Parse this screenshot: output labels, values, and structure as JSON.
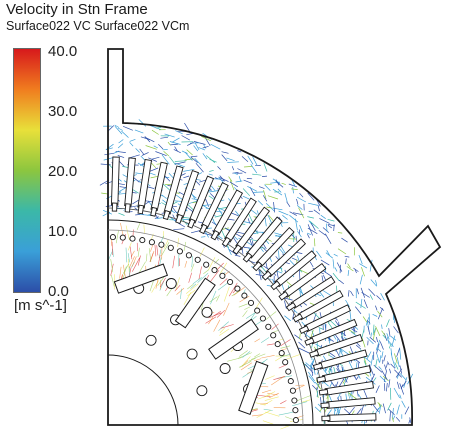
{
  "header": {
    "title": "Velocity in Stn Frame",
    "subtitle": "Surface022 VC Surface022 VCm"
  },
  "legend": {
    "ticks": [
      "40.0",
      "30.0",
      "20.0",
      "10.0",
      "0.0"
    ],
    "unit": "[m s^-1]",
    "colors": [
      "#d7191c",
      "#f07d1f",
      "#e8e03a",
      "#8cc63f",
      "#3bb8a8",
      "#3a9fd8",
      "#2c4ea8"
    ]
  },
  "plot": {
    "background": "#ffffff",
    "line_color": "#1a1a1a"
  }
}
